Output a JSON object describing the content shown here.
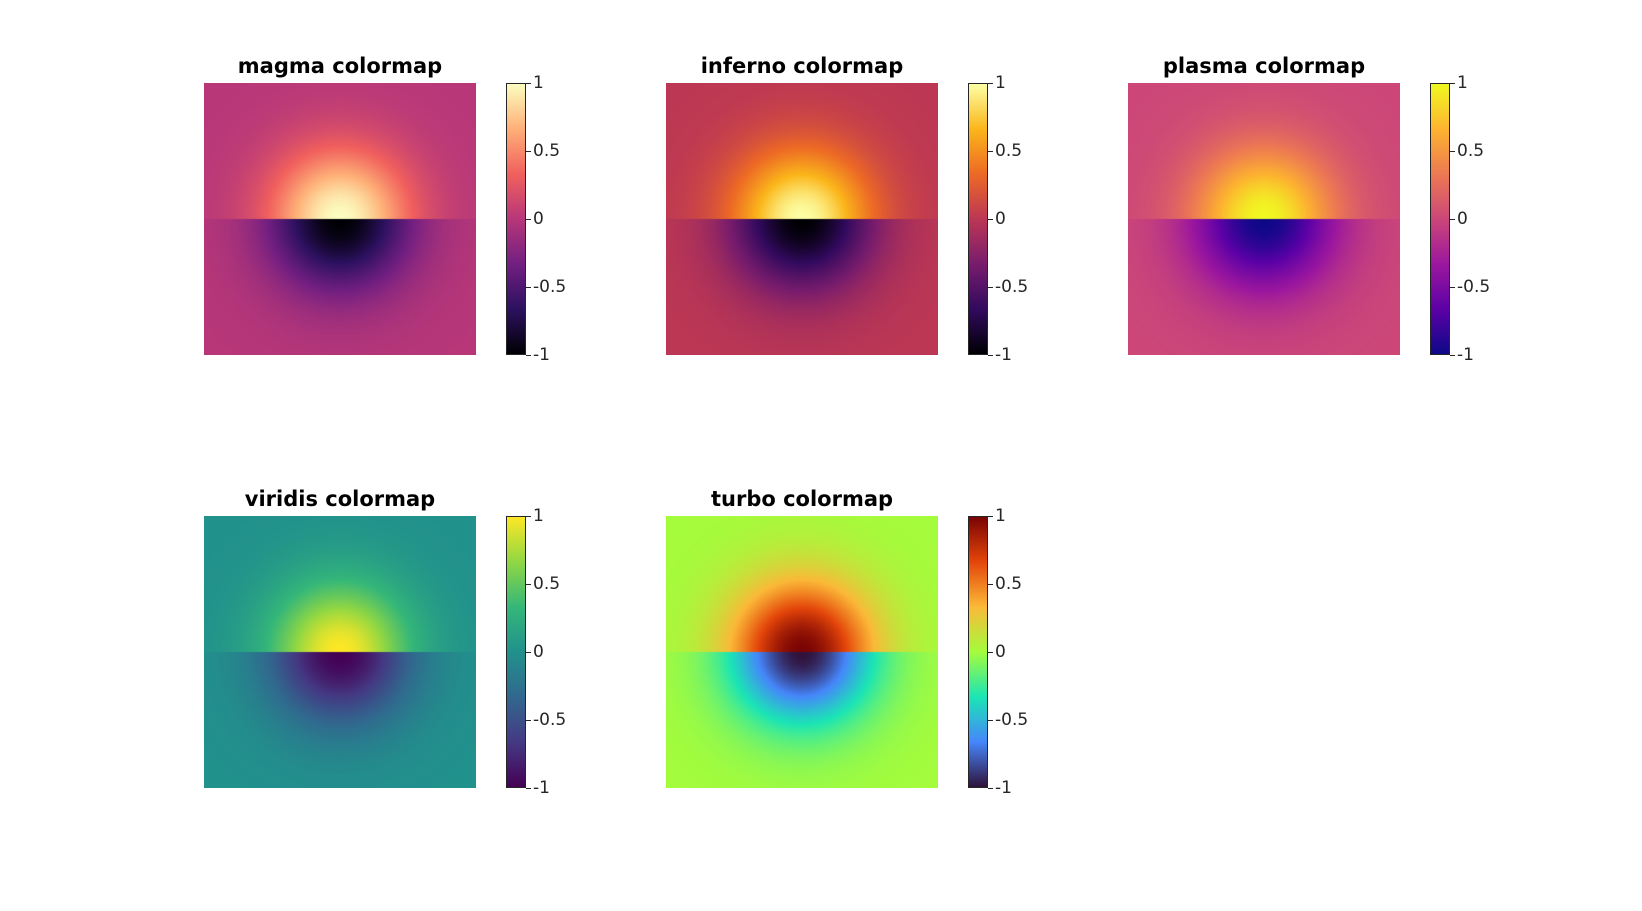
{
  "chart_data": [
    {
      "type": "heatmap",
      "title": "magma colormap",
      "colormap": "magma",
      "clim": [
        -1,
        1
      ],
      "colorbar_ticks": [
        "1",
        "0.5",
        "0",
        "-0.5",
        "-1"
      ],
      "colorbar_tick_values": [
        1,
        0.5,
        0,
        -0.5,
        -1
      ],
      "field": "positive half-disk peak (+1) above center line, negative (-1) below, 0 at edges",
      "grid": false
    },
    {
      "type": "heatmap",
      "title": "inferno colormap",
      "colormap": "inferno",
      "clim": [
        -1,
        1
      ],
      "colorbar_ticks": [
        "1",
        "0.5",
        "0",
        "-0.5",
        "-1"
      ],
      "colorbar_tick_values": [
        1,
        0.5,
        0,
        -0.5,
        -1
      ],
      "grid": false
    },
    {
      "type": "heatmap",
      "title": "plasma colormap",
      "colormap": "plasma",
      "clim": [
        -1,
        1
      ],
      "colorbar_ticks": [
        "1",
        "0.5",
        "0",
        "-0.5",
        "-1"
      ],
      "colorbar_tick_values": [
        1,
        0.5,
        0,
        -0.5,
        -1
      ],
      "grid": false
    },
    {
      "type": "heatmap",
      "title": "viridis colormap",
      "colormap": "viridis",
      "clim": [
        -1,
        1
      ],
      "colorbar_ticks": [
        "1",
        "0.5",
        "0",
        "-0.5",
        "-1"
      ],
      "colorbar_tick_values": [
        1,
        0.5,
        0,
        -0.5,
        -1
      ],
      "grid": false
    },
    {
      "type": "heatmap",
      "title": "turbo colormap",
      "colormap": "turbo",
      "clim": [
        -1,
        1
      ],
      "colorbar_ticks": [
        "1",
        "0.5",
        "0",
        "-0.5",
        "-1"
      ],
      "colorbar_tick_values": [
        1,
        0.5,
        0,
        -0.5,
        -1
      ],
      "grid": false
    }
  ],
  "colormaps": {
    "magma": [
      "#000004",
      "#2c115f",
      "#721f81",
      "#b73779",
      "#f1605d",
      "#feb078",
      "#fcfdbf"
    ],
    "inferno": [
      "#000004",
      "#320a5e",
      "#781c6d",
      "#bc3754",
      "#ed6925",
      "#fbb61a",
      "#fcffa4"
    ],
    "plasma": [
      "#0d0887",
      "#5c01a6",
      "#9c179e",
      "#cc4778",
      "#ed7953",
      "#fdb42f",
      "#f0f921"
    ],
    "viridis": [
      "#440154",
      "#443983",
      "#31688e",
      "#21918c",
      "#35b779",
      "#90d743",
      "#fde725"
    ],
    "turbo": [
      "#30123b",
      "#4686fb",
      "#1be5b5",
      "#a4fc3c",
      "#fbb938",
      "#e4460a",
      "#7a0403"
    ]
  }
}
